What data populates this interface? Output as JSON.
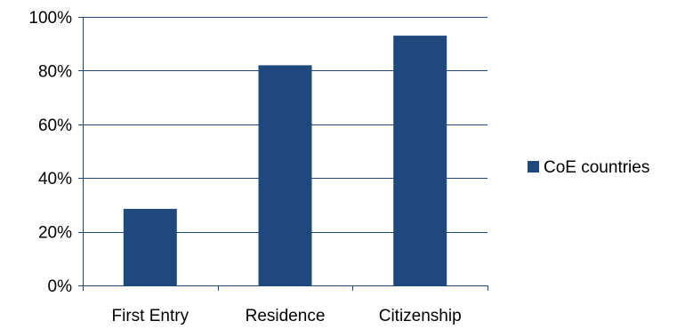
{
  "chart_data": {
    "type": "bar",
    "categories": [
      "First Entry",
      "Residence",
      "Citizenship"
    ],
    "series": [
      {
        "name": "CoE countries",
        "values": [
          28.5,
          82,
          93
        ]
      }
    ],
    "ylim": [
      0,
      100
    ],
    "yticks": [
      0,
      20,
      40,
      60,
      80,
      100
    ],
    "ytick_labels": [
      "0%",
      "20%",
      "40%",
      "60%",
      "80%",
      "100%"
    ],
    "grid": true,
    "legend_position": "right",
    "colors": {
      "bar": "#1F497D",
      "grid": "#1F497D",
      "axis": "#1F497D"
    }
  }
}
